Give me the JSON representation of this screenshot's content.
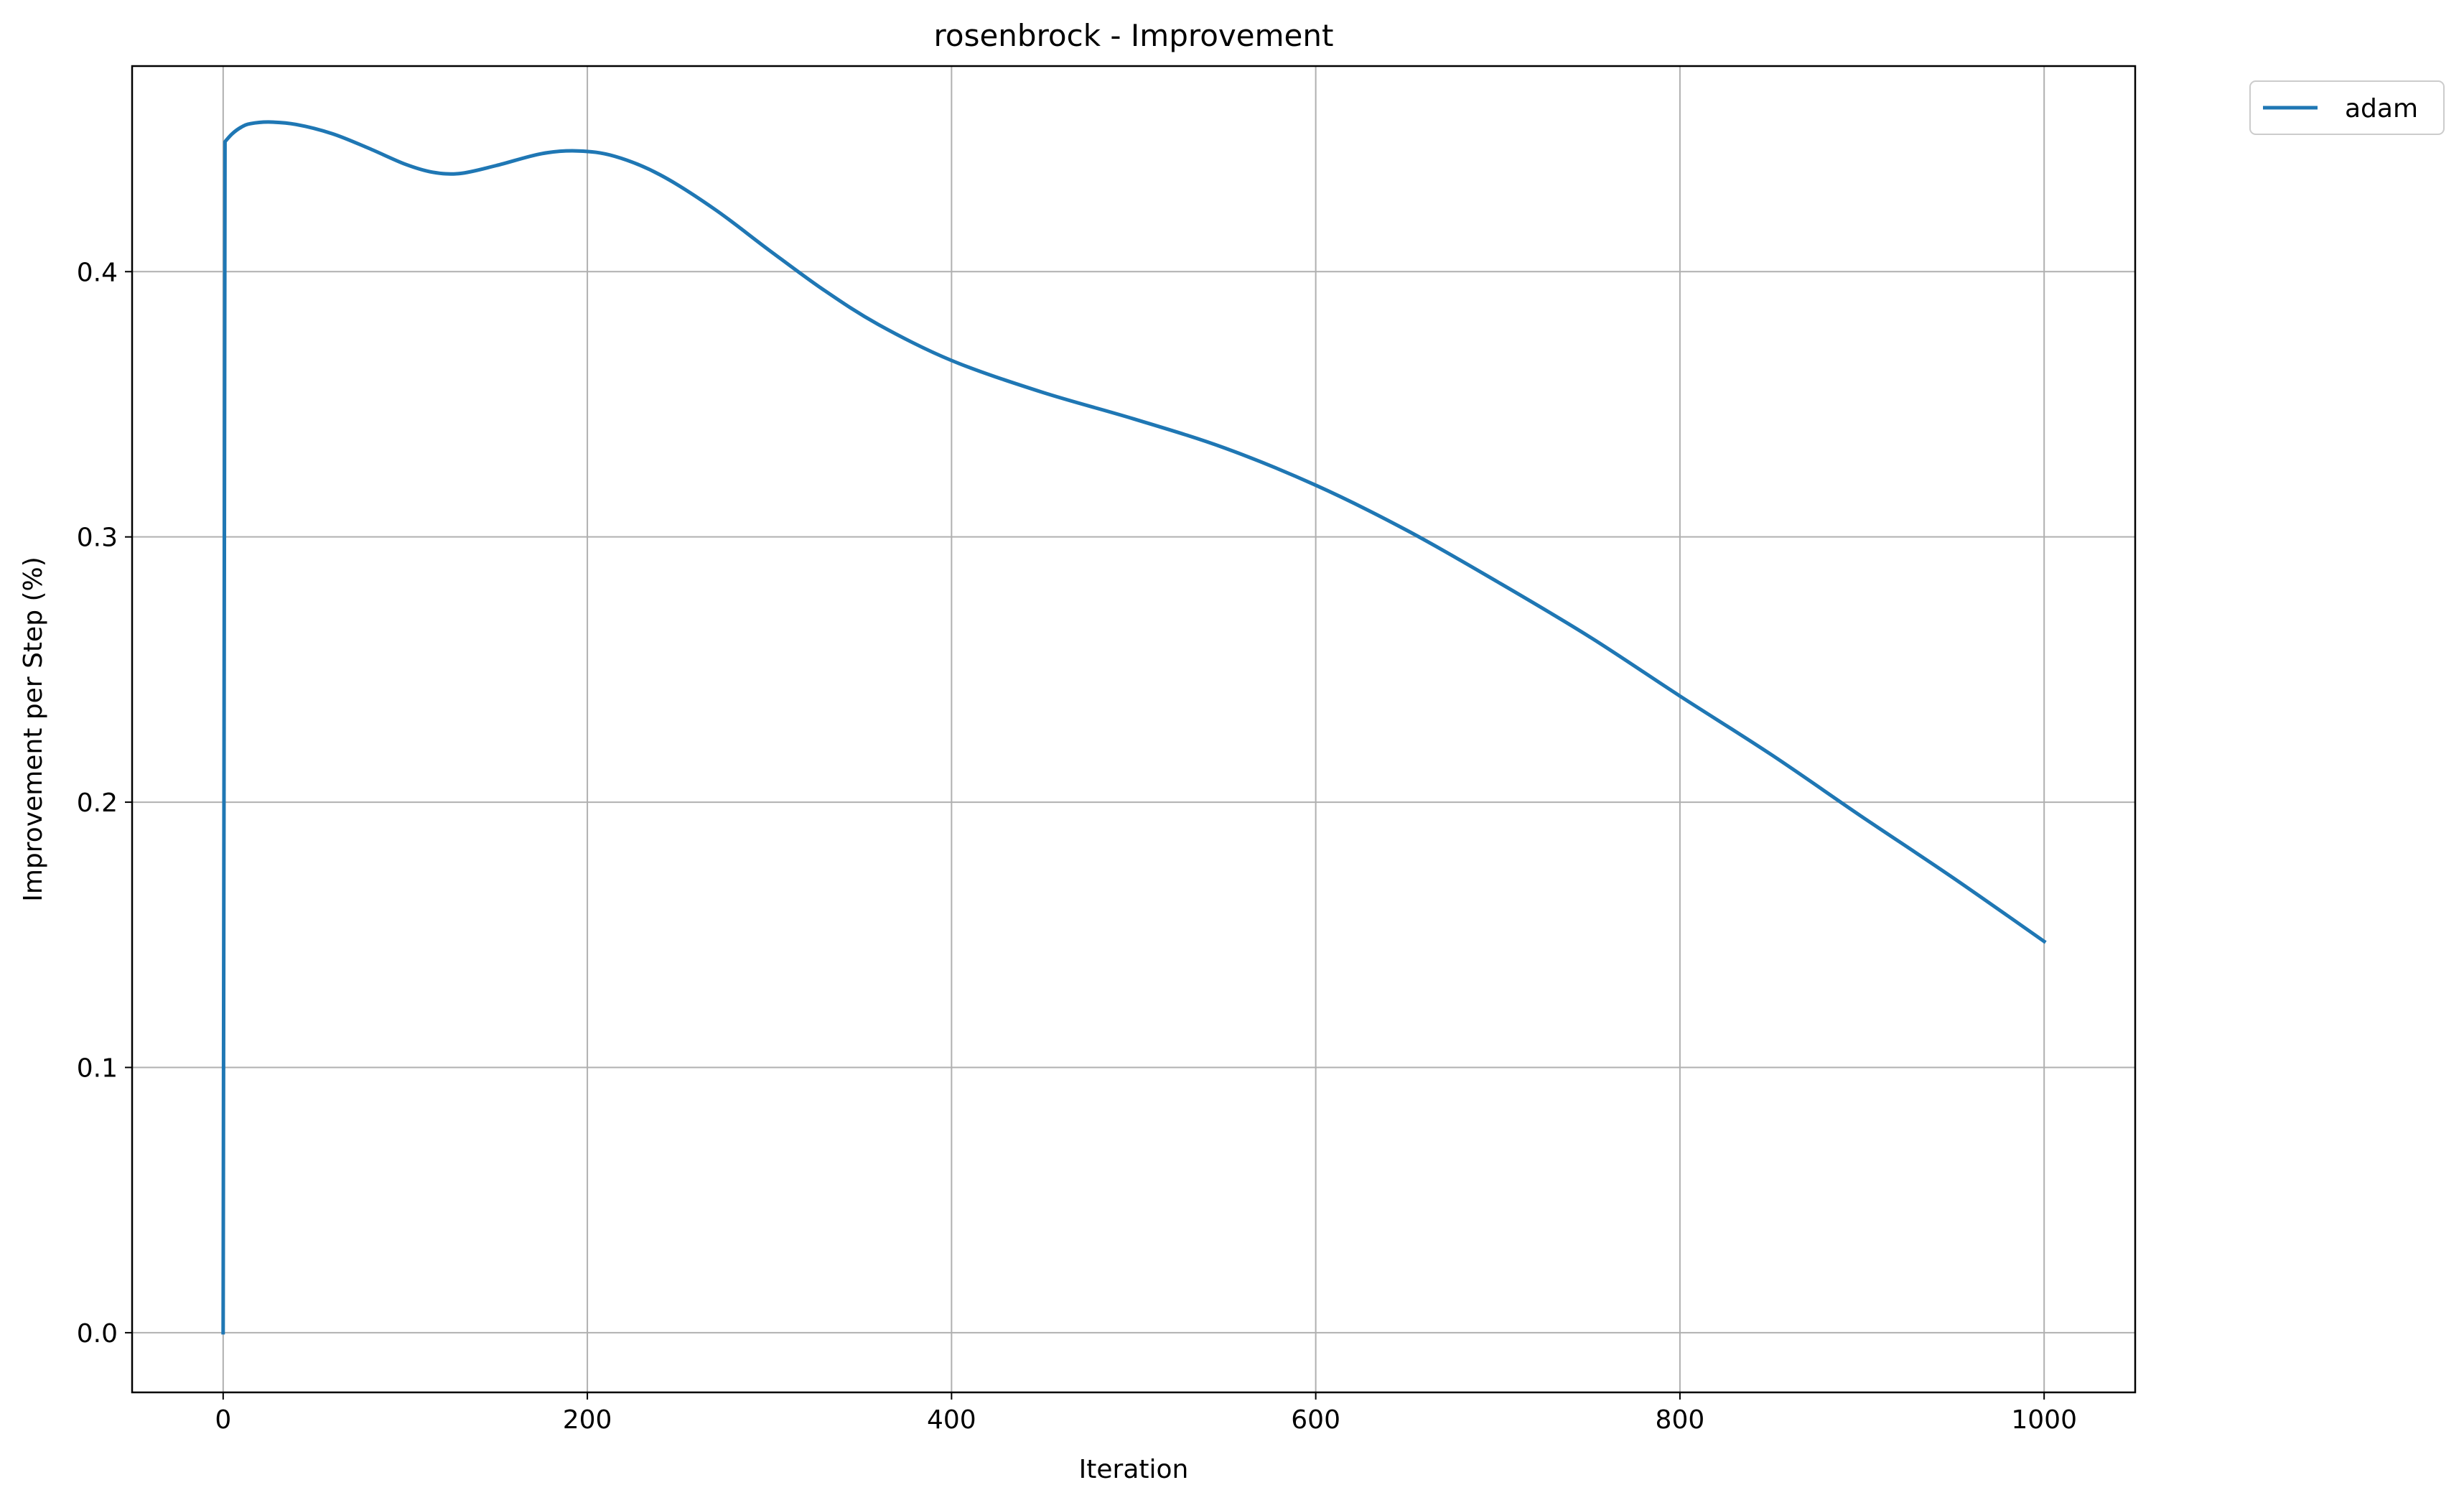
{
  "chart_data": {
    "type": "line",
    "title": "rosenbrock - Improvement",
    "xlabel": "Iteration",
    "ylabel": "Improvement per Step (%)",
    "xlim": [
      -50,
      1050
    ],
    "ylim": [
      -0.0225,
      0.4775
    ],
    "xticks": [
      0,
      200,
      400,
      600,
      800,
      1000
    ],
    "yticks": [
      0.0,
      0.1,
      0.2,
      0.3,
      0.4
    ],
    "xtick_labels": [
      "0",
      "200",
      "400",
      "600",
      "800",
      "1000"
    ],
    "ytick_labels": [
      "0.0",
      "0.1",
      "0.2",
      "0.3",
      "0.4"
    ],
    "grid": true,
    "legend_position": "outside top-right",
    "series": [
      {
        "name": "adam",
        "color": "#1f77b4",
        "x": [
          0,
          1,
          5,
          10,
          15,
          25,
          40,
          60,
          80,
          100,
          115,
          130,
          150,
          175,
          195,
          215,
          240,
          270,
          300,
          330,
          360,
          400,
          450,
          500,
          550,
          600,
          650,
          700,
          750,
          800,
          850,
          900,
          950,
          1000
        ],
        "y": [
          0.0,
          0.449,
          0.452,
          0.4545,
          0.4558,
          0.4564,
          0.4555,
          0.452,
          0.4465,
          0.4405,
          0.4375,
          0.437,
          0.44,
          0.4445,
          0.4455,
          0.4435,
          0.4365,
          0.4235,
          0.408,
          0.393,
          0.38,
          0.3665,
          0.3545,
          0.3445,
          0.3335,
          0.3195,
          0.3025,
          0.283,
          0.2625,
          0.24,
          0.218,
          0.1945,
          0.1715,
          0.1475
        ]
      }
    ]
  }
}
